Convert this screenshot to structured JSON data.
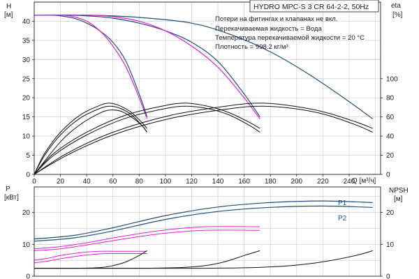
{
  "header": {
    "model": "HYDRO MPC-S 3 CR 64-2-2, 50Hz",
    "notes": [
      "Потери на фитингах и клапанах не вкл.",
      "Перекачиваемая жидкость = Вода",
      "Температура перекачиваемой жидкости = 20 °C",
      "Плотность = 998.2 кг/м³"
    ]
  },
  "chart_data": [
    {
      "type": "line",
      "panel": "head-eta",
      "xlabel": "Q [м³/ч]",
      "xlim": [
        0,
        264
      ],
      "xticks": [
        0,
        20,
        40,
        60,
        80,
        100,
        120,
        140,
        160,
        180,
        200,
        220,
        240
      ],
      "ylabel_left": [
        "H",
        "[м]"
      ],
      "ylim_left": [
        0,
        45
      ],
      "yticks_left": [
        0,
        5,
        10,
        15,
        20,
        25,
        30,
        35,
        40
      ],
      "ylabel_right": [
        "eta",
        "[%]"
      ],
      "ylim_right": [
        0,
        180
      ],
      "yticks_right": [
        0,
        20,
        40,
        60,
        80,
        100
      ],
      "grid": true,
      "colors": {
        "head_max": "#1f4e79",
        "head_red": "#e020d0",
        "eff": "#111111"
      },
      "series": [
        {
          "role": "head_max",
          "axis": "left",
          "x": [
            0,
            40,
            80,
            120,
            150,
            180,
            210,
            240,
            258
          ],
          "y": [
            41.6,
            41.6,
            41,
            39.5,
            36.5,
            32,
            26,
            19,
            14.5
          ]
        },
        {
          "role": "head_max",
          "axis": "left",
          "x": [
            0,
            20,
            40,
            60,
            80,
            100,
            120,
            140,
            160,
            172
          ],
          "y": [
            41.6,
            41.6,
            41.4,
            40.8,
            39.5,
            37.5,
            34.5,
            29.5,
            21,
            15
          ]
        },
        {
          "role": "head_max",
          "axis": "left",
          "x": [
            0,
            10,
            20,
            30,
            40,
            50,
            60,
            70,
            80,
            86
          ],
          "y": [
            41.6,
            41.6,
            41.4,
            40.8,
            39.5,
            37.5,
            34.5,
            29.5,
            21,
            15
          ]
        },
        {
          "role": "head_red",
          "axis": "left",
          "x": [
            0,
            40,
            60,
            80,
            100,
            120,
            140,
            160,
            172
          ],
          "y": [
            41.6,
            41.6,
            41.2,
            40,
            37.5,
            33.5,
            28,
            20,
            14.5
          ]
        },
        {
          "role": "head_red",
          "axis": "left",
          "x": [
            0,
            20,
            30,
            40,
            50,
            60,
            70,
            80,
            86
          ],
          "y": [
            41.6,
            41.6,
            41.2,
            40,
            37.5,
            33.5,
            28,
            20,
            14.5
          ]
        },
        {
          "role": "eff",
          "axis": "left",
          "x": [
            0,
            8,
            20,
            35,
            50,
            58,
            66,
            74,
            82,
            86
          ],
          "y": [
            0,
            5.5,
            11,
            15.5,
            18,
            18.6,
            17.8,
            16.2,
            13.6,
            12
          ]
        },
        {
          "role": "eff",
          "axis": "left",
          "x": [
            0,
            8,
            20,
            35,
            50,
            58,
            66,
            74,
            82,
            86
          ],
          "y": [
            0,
            5,
            10.3,
            14.7,
            17.2,
            17.8,
            17.2,
            15.6,
            12.8,
            11
          ]
        },
        {
          "role": "eff",
          "axis": "left",
          "x": [
            0,
            15,
            40,
            70,
            100,
            116,
            132,
            148,
            164,
            172
          ],
          "y": [
            0,
            5.5,
            11,
            15.5,
            18,
            18.6,
            17.8,
            16.2,
            13.6,
            12
          ]
        },
        {
          "role": "eff",
          "axis": "left",
          "x": [
            0,
            15,
            40,
            70,
            100,
            116,
            132,
            148,
            164,
            172
          ],
          "y": [
            0,
            5,
            10.3,
            14.7,
            17.2,
            17.8,
            17.2,
            15.6,
            12.8,
            11
          ]
        },
        {
          "role": "eff",
          "axis": "left",
          "x": [
            0,
            25,
            60,
            105,
            150,
            174,
            198,
            222,
            246,
            258
          ],
          "y": [
            0,
            5.5,
            11,
            15.5,
            18,
            18.6,
            17.8,
            16.2,
            13.6,
            12
          ]
        },
        {
          "role": "eff",
          "axis": "left",
          "x": [
            0,
            25,
            60,
            105,
            150,
            174,
            198,
            222,
            246,
            258
          ],
          "y": [
            0,
            5,
            10.3,
            14.7,
            17.2,
            17.8,
            17.2,
            15.6,
            12.8,
            11
          ]
        },
        {
          "role": "eff",
          "axis": "left",
          "x": [
            0,
            20,
            35,
            50,
            58,
            66,
            74,
            82,
            86
          ],
          "y": [
            0,
            8.5,
            13,
            16,
            16.8,
            16.5,
            15,
            12.8,
            11
          ]
        }
      ]
    },
    {
      "type": "line",
      "panel": "power-npsh",
      "xlim": [
        0,
        264
      ],
      "ylabel_left": [
        "P",
        "[кВт]"
      ],
      "ylim_left": [
        0,
        28
      ],
      "yticks_left": [
        0,
        10,
        20
      ],
      "ylabel_right": [
        "NPSH",
        "[м]"
      ],
      "ylim_right": [
        0,
        28
      ],
      "yticks_right": [
        0,
        10,
        20
      ],
      "grid": true,
      "colors": {
        "p_max": "#1f4e79",
        "p_red": "#e020d0",
        "npsh": "#111111"
      },
      "labels": [
        "P1",
        "P2"
      ],
      "series": [
        {
          "role": "p_max",
          "label": "P1",
          "axis": "left",
          "x": [
            0,
            30,
            60,
            100,
            140,
            180,
            220,
            258
          ],
          "y": [
            11.7,
            12.8,
            15.2,
            19,
            21.7,
            23.1,
            23.6,
            23.1
          ]
        },
        {
          "role": "p_max",
          "label": "P2",
          "axis": "left",
          "x": [
            0,
            30,
            60,
            100,
            140,
            180,
            220,
            258
          ],
          "y": [
            11,
            12,
            14.2,
            17.8,
            20.3,
            21.6,
            22,
            21.6
          ]
        },
        {
          "role": "p_red",
          "axis": "left",
          "x": [
            0,
            20,
            40,
            70,
            100,
            130,
            172
          ],
          "y": [
            8.6,
            9.3,
            10.5,
            12.7,
            14.5,
            15.5,
            15.5
          ]
        },
        {
          "role": "p_red",
          "axis": "left",
          "x": [
            0,
            20,
            40,
            70,
            100,
            130,
            172
          ],
          "y": [
            8,
            8.6,
            9.8,
            11.8,
            13.5,
            14.4,
            14.4
          ]
        },
        {
          "role": "p_red",
          "axis": "left",
          "x": [
            0,
            10,
            20,
            35,
            50,
            65,
            86
          ],
          "y": [
            5,
            5.6,
            6.5,
            7.4,
            7.8,
            7.8,
            7.8
          ]
        },
        {
          "role": "p_red",
          "axis": "left",
          "x": [
            0,
            10,
            20,
            35,
            50,
            65,
            86
          ],
          "y": [
            4.2,
            4.7,
            5.5,
            6.4,
            7,
            7.1,
            7.1
          ]
        },
        {
          "role": "npsh",
          "axis": "right",
          "x": [
            0,
            30,
            50,
            60,
            70,
            80,
            86
          ],
          "y": [
            2.5,
            2.5,
            2.7,
            3.3,
            4.5,
            6.5,
            8
          ]
        },
        {
          "role": "npsh",
          "axis": "right",
          "x": [
            0,
            80,
            110,
            130,
            145,
            160,
            172
          ],
          "y": [
            2.5,
            2.5,
            2.7,
            3.3,
            4.5,
            6.5,
            8
          ]
        },
        {
          "role": "npsh",
          "axis": "right",
          "x": [
            0,
            120,
            165,
            195,
            220,
            245,
            258
          ],
          "y": [
            2.5,
            2.5,
            2.7,
            3.3,
            4.5,
            6.5,
            8
          ]
        }
      ]
    }
  ]
}
